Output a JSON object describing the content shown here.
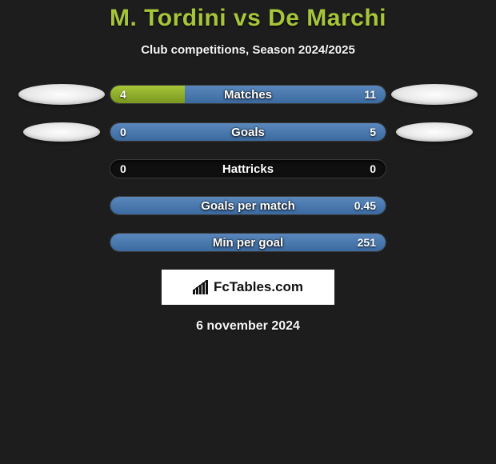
{
  "header": {
    "title": "M. Tordini vs De Marchi",
    "subtitle": "Club competitions, Season 2024/2025"
  },
  "colors": {
    "left_bar": "#a6c539",
    "right_bar": "#3b6aa0",
    "track": "#0f0f0f",
    "background": "#1d1d1d",
    "title": "#a6c539"
  },
  "stats": [
    {
      "label": "Matches",
      "left_value": "4",
      "right_value": "11",
      "left_pct": 27,
      "right_pct": 73,
      "show_ellipse": "large"
    },
    {
      "label": "Goals",
      "left_value": "0",
      "right_value": "5",
      "left_pct": 0,
      "right_pct": 100,
      "show_ellipse": "small"
    },
    {
      "label": "Hattricks",
      "left_value": "0",
      "right_value": "0",
      "left_pct": 0,
      "right_pct": 0,
      "show_ellipse": "none"
    },
    {
      "label": "Goals per match",
      "left_value": "",
      "right_value": "0.45",
      "left_pct": 0,
      "right_pct": 100,
      "show_ellipse": "none"
    },
    {
      "label": "Min per goal",
      "left_value": "",
      "right_value": "251",
      "left_pct": 0,
      "right_pct": 100,
      "show_ellipse": "none"
    }
  ],
  "brand": {
    "text": "FcTables.com"
  },
  "footer": {
    "date": "6 november 2024"
  }
}
